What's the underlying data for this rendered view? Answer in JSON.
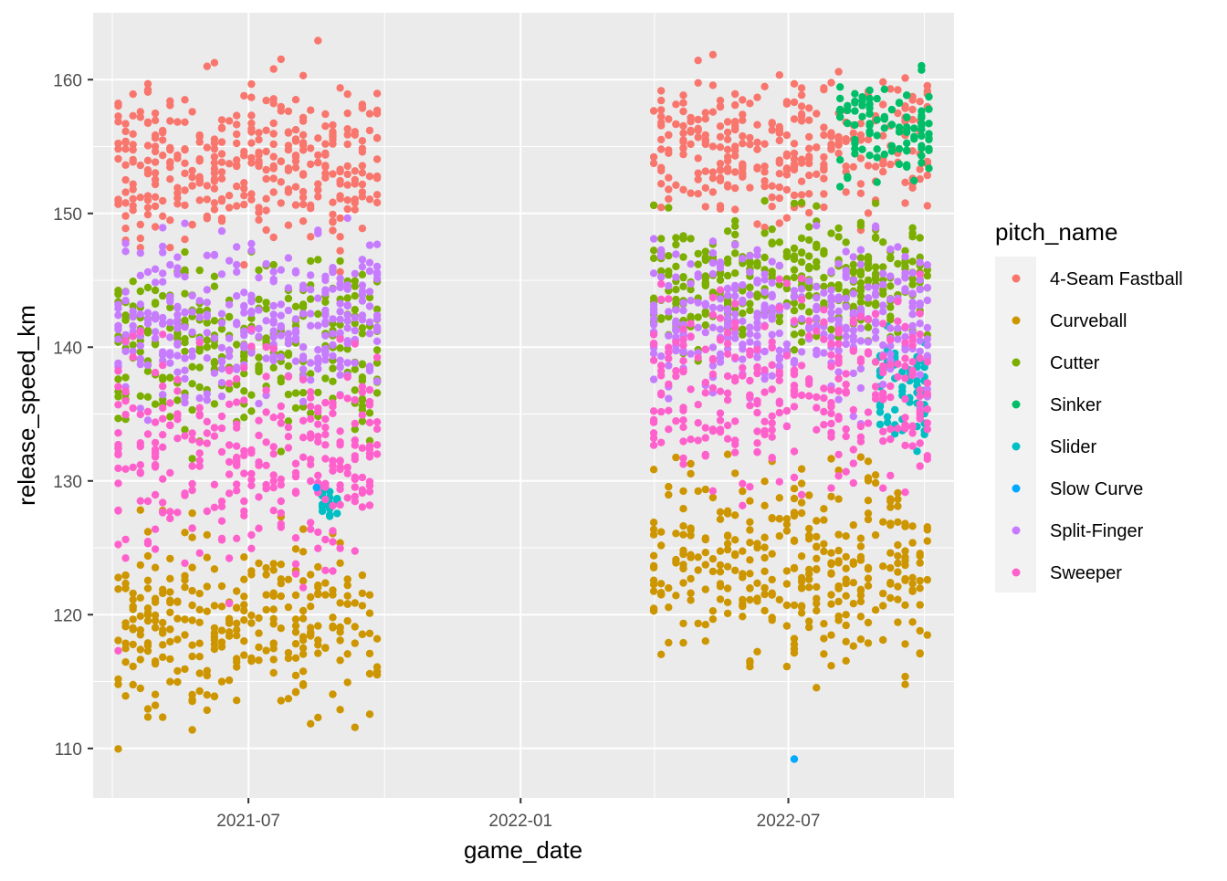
{
  "chart_data": {
    "type": "scatter",
    "xlabel": "game_date",
    "ylabel": "release_speed_km",
    "x_ticks": [
      "2021-07",
      "2022-01",
      "2022-07"
    ],
    "y_ticks": [
      110,
      120,
      130,
      140,
      150,
      160
    ],
    "xlim": [
      "2021-03-18",
      "2022-10-21"
    ],
    "ylim": [
      106.3,
      165.0
    ],
    "grid": true,
    "legend": {
      "title": "pitch_name",
      "position": "right"
    },
    "series": [
      {
        "name": "4-Seam Fastball",
        "color": "#F8766D"
      },
      {
        "name": "Curveball",
        "color": "#CD9600"
      },
      {
        "name": "Cutter",
        "color": "#7CAE00"
      },
      {
        "name": "Sinker",
        "color": "#00BE67"
      },
      {
        "name": "Slider",
        "color": "#00BFC4"
      },
      {
        "name": "Slow Curve",
        "color": "#00A9FF"
      },
      {
        "name": "Split-Finger",
        "color": "#C77CFF"
      },
      {
        "name": "Sweeper",
        "color": "#FF61CC"
      }
    ],
    "season_ranges": [
      {
        "start": "2021-04-04",
        "end": "2021-09-26"
      },
      {
        "start": "2022-04-01",
        "end": "2022-10-05"
      }
    ],
    "distributions": [
      {
        "series": "4-Seam Fastball",
        "season": 0,
        "min": 145,
        "max": 163,
        "typical": [
          148,
          160
        ]
      },
      {
        "series": "4-Seam Fastball",
        "season": 1,
        "min": 148,
        "max": 163,
        "typical": [
          150,
          160
        ]
      },
      {
        "series": "Curveball",
        "season": 0,
        "min": 109,
        "max": 128,
        "typical": [
          112,
          127
        ]
      },
      {
        "series": "Curveball",
        "season": 1,
        "min": 114.5,
        "max": 132,
        "typical": [
          116,
          131
        ]
      },
      {
        "series": "Cutter",
        "season": 0,
        "min": 128.5,
        "max": 150,
        "typical": [
          134,
          146
        ]
      },
      {
        "series": "Cutter",
        "season": 1,
        "min": 130,
        "max": 152,
        "typical": [
          140,
          150
        ]
      },
      {
        "series": "Sinker",
        "season": 1,
        "min": 150,
        "max": 163,
        "typical": [
          152,
          161
        ],
        "start": "2022-08-05"
      },
      {
        "series": "Slider",
        "season": 0,
        "min": 126.5,
        "max": 130,
        "typical": [
          127,
          129.5
        ],
        "start": "2021-08-20",
        "end": "2021-08-31"
      },
      {
        "series": "Slider",
        "season": 1,
        "min": 130,
        "max": 142.5,
        "typical": [
          133,
          141
        ],
        "start": "2022-09-01"
      },
      {
        "series": "Split-Finger",
        "season": 0,
        "min": 134,
        "max": 150,
        "typical": [
          136,
          148
        ]
      },
      {
        "series": "Split-Finger",
        "season": 1,
        "min": 133,
        "max": 151,
        "typical": [
          136,
          148
        ]
      },
      {
        "series": "Sweeper",
        "season": 0,
        "min": 117,
        "max": 142,
        "typical": [
          124,
          140
        ]
      },
      {
        "series": "Sweeper",
        "season": 1,
        "min": 126.5,
        "max": 146,
        "typical": [
          130,
          144
        ]
      }
    ],
    "outliers": [
      {
        "series": "Slow Curve",
        "x": "2022-07-05",
        "y": 109.2
      },
      {
        "series": "Slow Curve",
        "x": "2021-08-16",
        "y": 129.5
      },
      {
        "series": "Sweeper",
        "x": "2021-04-04",
        "y": 117.3
      }
    ]
  }
}
